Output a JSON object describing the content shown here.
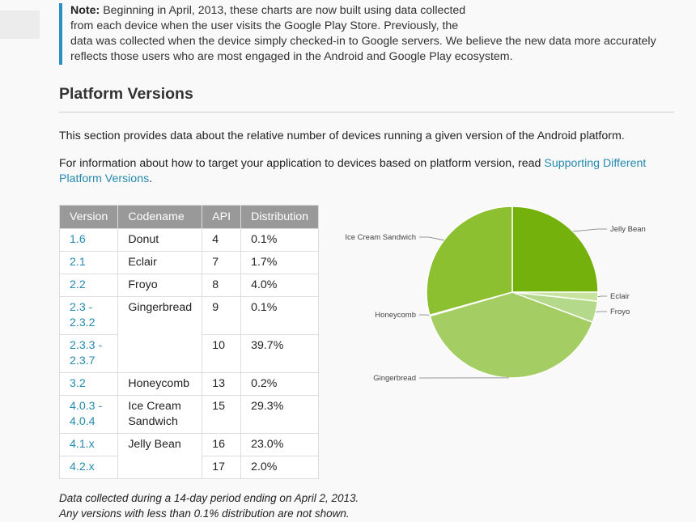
{
  "note": {
    "bold": "Note:",
    "line1": " Beginning in April, 2013, these charts are now built using data collected",
    "line2": "from each device when the user visits the Google Play Store. Previously, the",
    "line3": "data was collected when the device simply checked-in to Google servers. We believe the new data more accurately",
    "line4": "reflects those users who are most engaged in the Android and Google Play ecosystem.",
    "accent_color": "#2a90c4"
  },
  "section": {
    "title": "Platform Versions",
    "intro": "This section provides data about the relative number of devices running a given version of the Android platform.",
    "info_prefix": "For information about how to target your application to devices based on platform version, read ",
    "info_link_line1": "Supporting Different",
    "info_link_line2": "Platform Versions",
    "info_suffix": "."
  },
  "table": {
    "headers": [
      "Version",
      "Codename",
      "API",
      "Distribution"
    ],
    "rows": [
      {
        "version": "1.6",
        "codename": "Donut",
        "api": "4",
        "dist": "0.1%"
      },
      {
        "version": "2.1",
        "codename": "Eclair",
        "api": "7",
        "dist": "1.7%"
      },
      {
        "version": "2.2",
        "codename": "Froyo",
        "api": "8",
        "dist": "4.0%"
      },
      {
        "version_a": "2.3 -",
        "version_b": "2.3.2",
        "codename": "Gingerbread",
        "api": "9",
        "dist": "0.1%"
      },
      {
        "version_a": "2.3.3 -",
        "version_b": "2.3.7",
        "api": "10",
        "dist": "39.7%"
      },
      {
        "version": "3.2",
        "codename": "Honeycomb",
        "api": "13",
        "dist": "0.2%"
      },
      {
        "version_a": "4.0.3 -",
        "version_b": "4.0.4",
        "codename_a": "Ice Cream",
        "codename_b": "Sandwich",
        "api": "15",
        "dist": "29.3%"
      },
      {
        "version": "4.1.x",
        "codename": "Jelly Bean",
        "api": "16",
        "dist": "23.0%"
      },
      {
        "version": "4.2.x",
        "api": "17",
        "dist": "2.0%"
      }
    ],
    "header_bg": "#999999",
    "link_color": "#258aaf"
  },
  "footnote": {
    "line1": "Data collected during a 14-day period ending on April 2, 2013.",
    "line2": "Any versions with less than 0.1% distribution are not shown."
  },
  "chart_data": {
    "type": "pie",
    "title": "",
    "slices": [
      {
        "label": "Jelly Bean",
        "value": 25.0,
        "color": "#74b10c"
      },
      {
        "label": "Eclair",
        "value": 1.7,
        "color": "#c8e39f"
      },
      {
        "label": "Froyo",
        "value": 4.0,
        "color": "#b5d98a"
      },
      {
        "label": "Gingerbread",
        "value": 39.8,
        "color": "#a4cd63"
      },
      {
        "label": "Honeycomb",
        "value": 0.2,
        "color": "#98c74f"
      },
      {
        "label": "Ice Cream Sandwich",
        "value": 29.3,
        "color": "#8cc031"
      }
    ]
  }
}
